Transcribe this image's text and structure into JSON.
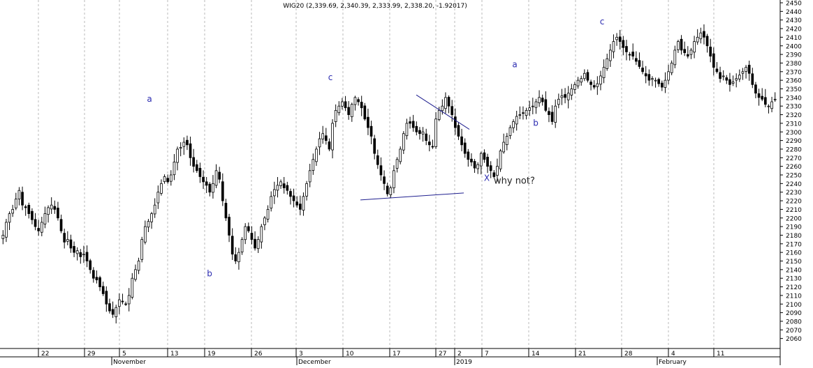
{
  "chart_data": {
    "type": "candlestick",
    "title": "WIG20 (2,339.69, 2,340.39, 2,333.99, 2,338.20, -1.92017)",
    "ylim": [
      2050,
      2450
    ],
    "y_ticks": [
      2060,
      2070,
      2080,
      2090,
      2100,
      2110,
      2120,
      2130,
      2140,
      2150,
      2160,
      2170,
      2180,
      2190,
      2200,
      2210,
      2220,
      2230,
      2240,
      2250,
      2260,
      2270,
      2280,
      2290,
      2300,
      2310,
      2320,
      2330,
      2340,
      2350,
      2360,
      2370,
      2380,
      2390,
      2400,
      2410,
      2420,
      2430,
      2440,
      2450
    ],
    "grid": true,
    "x_day_labels": [
      "22",
      "29",
      "5",
      "13",
      "19",
      "26",
      "3",
      "10",
      "17",
      "27",
      "2",
      "7",
      "14",
      "21",
      "28",
      "4",
      "11"
    ],
    "x_month_labels": [
      "November",
      "December",
      "2019",
      "February"
    ],
    "annotations": [
      {
        "text": "a",
        "value": 2335
      },
      {
        "text": "b",
        "value": 2132
      },
      {
        "text": "c",
        "value": 2360
      },
      {
        "text": "X",
        "value": 2243
      },
      {
        "text": "why not?",
        "value": 2240
      },
      {
        "text": "a",
        "value": 2375
      },
      {
        "text": "b",
        "value": 2307
      },
      {
        "text": "c",
        "value": 2425
      }
    ],
    "pattern_lines": [
      {
        "name": "upper-trendline",
        "from": 2343,
        "to": 2303
      },
      {
        "name": "lower-trendline",
        "from": 2221,
        "to": 2229
      }
    ],
    "closes": [
      2180,
      2195,
      2205,
      2210,
      2222,
      2232,
      2215,
      2212,
      2205,
      2198,
      2190,
      2185,
      2195,
      2205,
      2212,
      2215,
      2210,
      2200,
      2185,
      2172,
      2175,
      2165,
      2160,
      2162,
      2155,
      2158,
      2150,
      2140,
      2130,
      2128,
      2120,
      2112,
      2100,
      2092,
      2088,
      2096,
      2105,
      2103,
      2100,
      2110,
      2130,
      2140,
      2150,
      2175,
      2190,
      2196,
      2205,
      2215,
      2230,
      2240,
      2248,
      2242,
      2250,
      2265,
      2280,
      2282,
      2288,
      2285,
      2270,
      2260,
      2255,
      2248,
      2242,
      2238,
      2230,
      2240,
      2255,
      2245,
      2220,
      2200,
      2180,
      2158,
      2150,
      2160,
      2175,
      2190,
      2185,
      2175,
      2165,
      2175,
      2190,
      2200,
      2210,
      2225,
      2233,
      2238,
      2242,
      2235,
      2232,
      2225,
      2220,
      2215,
      2210,
      2225,
      2240,
      2255,
      2268,
      2280,
      2292,
      2298,
      2290,
      2280,
      2310,
      2325,
      2330,
      2335,
      2328,
      2320,
      2332,
      2340,
      2335,
      2328,
      2315,
      2305,
      2295,
      2275,
      2262,
      2250,
      2240,
      2228,
      2235,
      2255,
      2268,
      2280,
      2298,
      2310,
      2310,
      2305,
      2300,
      2298,
      2300,
      2290,
      2285,
      2283,
      2315,
      2325,
      2330,
      2340,
      2330,
      2320,
      2305,
      2295,
      2285,
      2275,
      2268,
      2265,
      2258,
      2262,
      2275,
      2268,
      2260,
      2255,
      2248,
      2260,
      2278,
      2288,
      2295,
      2305,
      2312,
      2318,
      2320,
      2322,
      2325,
      2328,
      2330,
      2335,
      2340,
      2335,
      2325,
      2320,
      2312,
      2330,
      2338,
      2342,
      2340,
      2345,
      2350,
      2355,
      2360,
      2362,
      2368,
      2360,
      2355,
      2352,
      2356,
      2365,
      2375,
      2385,
      2395,
      2405,
      2410,
      2405,
      2398,
      2393,
      2390,
      2388,
      2382,
      2376,
      2370,
      2365,
      2360,
      2362,
      2360,
      2356,
      2352,
      2360,
      2370,
      2380,
      2395,
      2405,
      2395,
      2392,
      2388,
      2395,
      2405,
      2410,
      2415,
      2410,
      2400,
      2388,
      2375,
      2370,
      2362,
      2365,
      2360,
      2355,
      2358,
      2362,
      2366,
      2370,
      2375,
      2368,
      2355,
      2345,
      2340,
      2338,
      2332,
      2330,
      2335,
      2338
    ]
  }
}
